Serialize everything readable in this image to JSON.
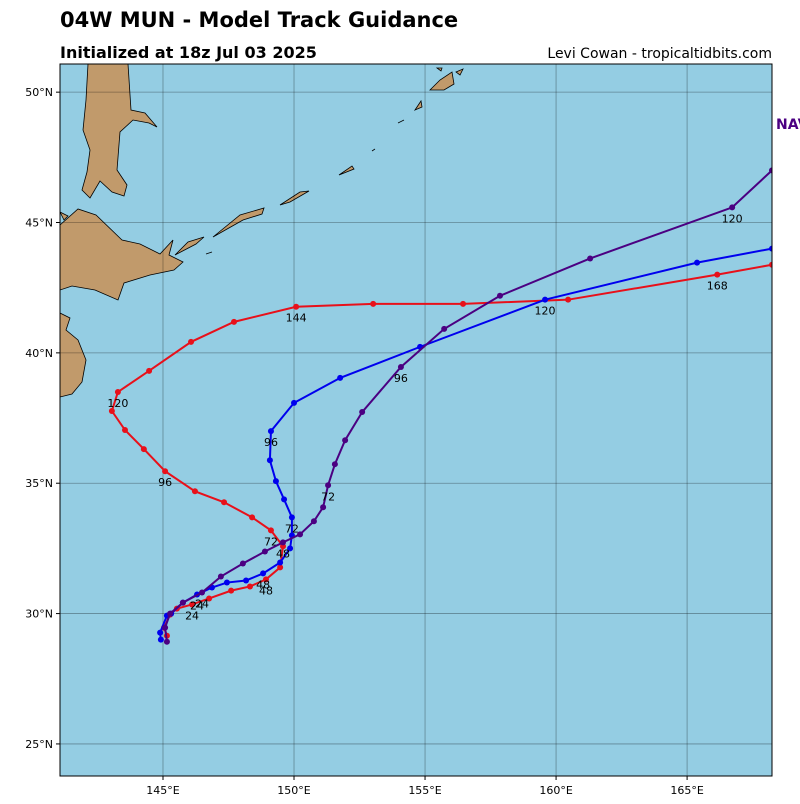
{
  "header": {
    "title": "04W MUN - Model Track Guidance",
    "subtitle": "Initialized at 18z Jul 03 2025",
    "credit": "Levi Cowan - tropicaltidbits.com"
  },
  "map": {
    "lon_range": [
      141.07,
      168.24
    ],
    "lat_range": [
      23.77,
      51.08
    ],
    "ocean_color": "#94cde3",
    "grid": true,
    "lon_ticks": [
      {
        "value": 145,
        "label": "145°E"
      },
      {
        "value": 150,
        "label": "150°E"
      },
      {
        "value": 155,
        "label": "155°E"
      },
      {
        "value": 160,
        "label": "160°E"
      },
      {
        "value": 165,
        "label": "165°E"
      }
    ],
    "lat_ticks": [
      {
        "value": 25,
        "label": "25°N"
      },
      {
        "value": 30,
        "label": "30°N"
      },
      {
        "value": 35,
        "label": "35°N"
      },
      {
        "value": 40,
        "label": "40°N"
      },
      {
        "value": 45,
        "label": "45°N"
      },
      {
        "value": 50,
        "label": "50°N"
      }
    ],
    "edge_label": {
      "text": "NAV",
      "color": "#4b0082"
    },
    "tracks": [
      {
        "color": "#e8101a",
        "lon": [
          145.15,
          145.04,
          145.27,
          145.53,
          146.11,
          146.76,
          147.6,
          148.32,
          148.93,
          149.47,
          149.58,
          149.12,
          148.4,
          147.33,
          146.22,
          145.08,
          144.27,
          143.55,
          143.05,
          143.28,
          144.47,
          146.07,
          147.71,
          150.08,
          153.02,
          156.45,
          160.46,
          166.15,
          168.24
        ],
        "lat": [
          29.15,
          29.46,
          29.96,
          30.19,
          30.35,
          30.58,
          30.88,
          31.04,
          31.31,
          31.77,
          32.58,
          33.19,
          33.69,
          34.27,
          34.69,
          35.46,
          36.31,
          37.04,
          37.77,
          38.5,
          39.31,
          40.42,
          41.19,
          41.77,
          41.88,
          41.88,
          42.04,
          43.0,
          43.38
        ],
        "labels": [
          null,
          null,
          null,
          null,
          "24",
          null,
          null,
          null,
          "48",
          null,
          null,
          "72",
          null,
          null,
          null,
          "96",
          null,
          null,
          null,
          "120",
          null,
          null,
          null,
          "144",
          null,
          null,
          null,
          "168",
          null
        ]
      },
      {
        "color": "#0000ee",
        "lon": [
          144.92,
          144.89,
          145.15,
          145.31,
          145.76,
          146.3,
          146.87,
          147.44,
          148.17,
          148.82,
          149.47,
          149.85,
          149.92,
          149.92,
          149.62,
          149.31,
          149.08,
          149.12,
          150.0,
          151.76,
          154.81,
          159.58,
          165.38,
          168.24
        ],
        "lat": [
          29.0,
          29.27,
          29.92,
          30.0,
          30.42,
          30.73,
          31.0,
          31.19,
          31.27,
          31.54,
          31.96,
          32.5,
          33.0,
          33.69,
          34.38,
          35.08,
          35.88,
          37.0,
          38.08,
          39.04,
          40.23,
          42.04,
          43.46,
          44.0
        ],
        "labels": [
          null,
          null,
          null,
          null,
          null,
          "24",
          null,
          null,
          null,
          "48",
          null,
          null,
          null,
          "72",
          null,
          null,
          null,
          "96",
          null,
          null,
          null,
          "120",
          null,
          null
        ]
      },
      {
        "color": "#4b0082",
        "lon": [
          145.15,
          145.08,
          145.27,
          145.76,
          146.49,
          147.21,
          148.05,
          148.89,
          149.58,
          150.23,
          150.76,
          151.11,
          151.3,
          151.56,
          151.95,
          152.6,
          154.08,
          155.73,
          157.86,
          161.3,
          166.72,
          168.24
        ],
        "lat": [
          28.92,
          29.46,
          30.0,
          30.42,
          30.81,
          31.42,
          31.92,
          32.38,
          32.73,
          33.04,
          33.54,
          34.08,
          34.92,
          35.73,
          36.65,
          37.73,
          39.46,
          40.92,
          42.19,
          43.62,
          45.58,
          47.0
        ],
        "labels": [
          null,
          null,
          null,
          null,
          "24",
          null,
          null,
          null,
          "48",
          null,
          null,
          null,
          "72",
          null,
          null,
          null,
          "96",
          null,
          null,
          null,
          "120",
          null
        ]
      }
    ]
  }
}
